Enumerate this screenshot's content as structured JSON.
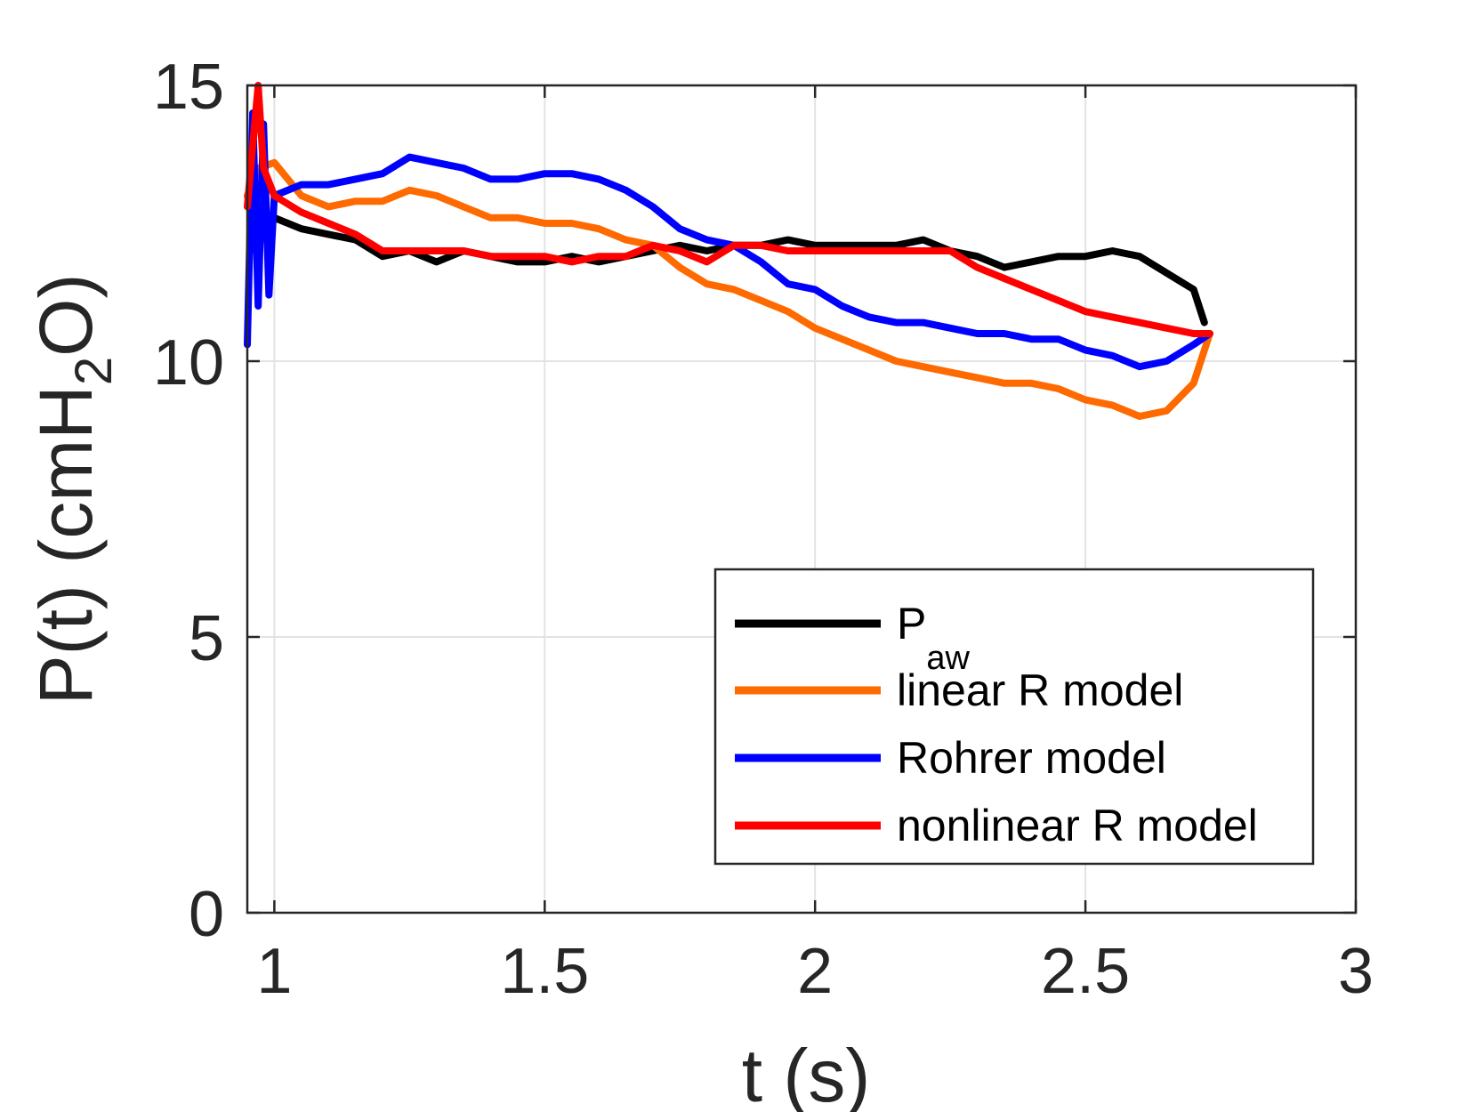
{
  "chart_data": {
    "type": "line",
    "xlabel": "t (s)",
    "ylabel_main": "P(t) (cmH",
    "ylabel_sub": "2",
    "ylabel_end": "O)",
    "xlim": [
      0.95,
      3
    ],
    "ylim": [
      0,
      15
    ],
    "xticks": [
      1,
      1.5,
      2,
      2.5,
      3
    ],
    "xtick_labels": [
      "1",
      "1.5",
      "2",
      "2.5",
      "3"
    ],
    "yticks": [
      0,
      5,
      10,
      15
    ],
    "ytick_labels": [
      "0",
      "5",
      "10",
      "15"
    ],
    "grid": true,
    "legend_position": "lower-right",
    "series": [
      {
        "name": "P",
        "name_sub": "aw",
        "color": "#000000",
        "x": [
          0.95,
          0.97,
          1.0,
          1.05,
          1.1,
          1.15,
          1.2,
          1.25,
          1.3,
          1.35,
          1.4,
          1.45,
          1.5,
          1.55,
          1.6,
          1.65,
          1.7,
          1.75,
          1.8,
          1.85,
          1.9,
          1.95,
          2.0,
          2.05,
          2.1,
          2.15,
          2.2,
          2.25,
          2.3,
          2.35,
          2.4,
          2.45,
          2.5,
          2.55,
          2.6,
          2.65,
          2.7,
          2.72
        ],
        "y": [
          13.0,
          12.5,
          12.6,
          12.4,
          12.3,
          12.2,
          11.9,
          12.0,
          11.8,
          12.0,
          11.9,
          11.8,
          11.8,
          11.9,
          11.8,
          11.9,
          12.0,
          12.1,
          12.0,
          12.1,
          12.1,
          12.2,
          12.1,
          12.1,
          12.1,
          12.1,
          12.2,
          12.0,
          11.9,
          11.7,
          11.8,
          11.9,
          11.9,
          12.0,
          11.9,
          11.6,
          11.3,
          10.7
        ]
      },
      {
        "name": "linear R model",
        "color": "#FF6A00",
        "x": [
          0.95,
          0.97,
          1.0,
          1.05,
          1.1,
          1.15,
          1.2,
          1.25,
          1.3,
          1.35,
          1.4,
          1.45,
          1.5,
          1.55,
          1.6,
          1.65,
          1.7,
          1.75,
          1.8,
          1.85,
          1.9,
          1.95,
          2.0,
          2.05,
          2.1,
          2.15,
          2.2,
          2.25,
          2.3,
          2.35,
          2.4,
          2.45,
          2.5,
          2.55,
          2.6,
          2.65,
          2.7,
          2.73
        ],
        "y": [
          13.0,
          13.5,
          13.6,
          13.0,
          12.8,
          12.9,
          12.9,
          13.1,
          13.0,
          12.8,
          12.6,
          12.6,
          12.5,
          12.5,
          12.4,
          12.2,
          12.1,
          11.7,
          11.4,
          11.3,
          11.1,
          10.9,
          10.6,
          10.4,
          10.2,
          10.0,
          9.9,
          9.8,
          9.7,
          9.6,
          9.6,
          9.5,
          9.3,
          9.2,
          9.0,
          9.1,
          9.6,
          10.5
        ]
      },
      {
        "name": "Rohrer model",
        "color": "#0000FF",
        "x": [
          0.95,
          0.96,
          0.97,
          0.98,
          0.99,
          1.0,
          1.05,
          1.1,
          1.15,
          1.2,
          1.25,
          1.3,
          1.35,
          1.4,
          1.45,
          1.5,
          1.55,
          1.6,
          1.65,
          1.7,
          1.75,
          1.8,
          1.85,
          1.9,
          1.95,
          2.0,
          2.05,
          2.1,
          2.15,
          2.2,
          2.25,
          2.3,
          2.35,
          2.4,
          2.45,
          2.5,
          2.55,
          2.6,
          2.65,
          2.7,
          2.73
        ],
        "y": [
          10.3,
          14.5,
          11.0,
          14.3,
          11.2,
          13.0,
          13.2,
          13.2,
          13.3,
          13.4,
          13.7,
          13.6,
          13.5,
          13.3,
          13.3,
          13.4,
          13.4,
          13.3,
          13.1,
          12.8,
          12.4,
          12.2,
          12.1,
          11.8,
          11.4,
          11.3,
          11.0,
          10.8,
          10.7,
          10.7,
          10.6,
          10.5,
          10.5,
          10.4,
          10.4,
          10.2,
          10.1,
          9.9,
          10.0,
          10.3,
          10.5
        ]
      },
      {
        "name": "nonlinear R model",
        "color": "#FF0000",
        "x": [
          0.95,
          0.97,
          0.98,
          1.0,
          1.05,
          1.1,
          1.15,
          1.2,
          1.25,
          1.3,
          1.35,
          1.4,
          1.45,
          1.5,
          1.55,
          1.6,
          1.65,
          1.7,
          1.75,
          1.8,
          1.85,
          1.9,
          1.95,
          2.0,
          2.05,
          2.1,
          2.15,
          2.2,
          2.25,
          2.3,
          2.35,
          2.4,
          2.45,
          2.5,
          2.55,
          2.6,
          2.65,
          2.7,
          2.73
        ],
        "y": [
          12.8,
          15.0,
          13.5,
          13.0,
          12.7,
          12.5,
          12.3,
          12.0,
          12.0,
          12.0,
          12.0,
          11.9,
          11.9,
          11.9,
          11.8,
          11.9,
          11.9,
          12.1,
          12.0,
          11.8,
          12.1,
          12.1,
          12.0,
          12.0,
          12.0,
          12.0,
          12.0,
          12.0,
          12.0,
          11.7,
          11.5,
          11.3,
          11.1,
          10.9,
          10.8,
          10.7,
          10.6,
          10.5,
          10.5
        ]
      }
    ]
  }
}
